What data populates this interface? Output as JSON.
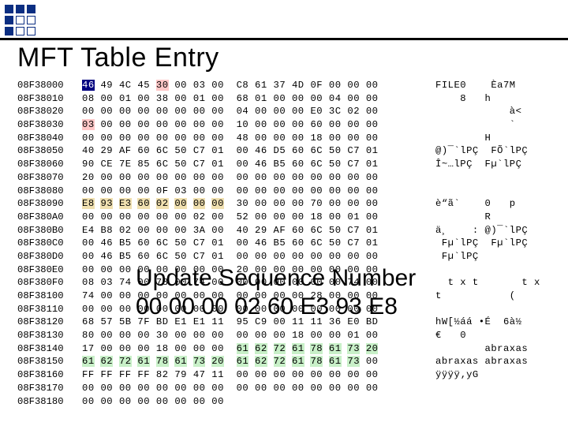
{
  "deco": {
    "squares": [
      {
        "type": "filled"
      },
      {
        "type": "filled"
      },
      {
        "type": "filled"
      },
      {
        "type": "filled"
      },
      {
        "type": "outline"
      },
      {
        "type": "outline"
      },
      {
        "type": "filled"
      },
      {
        "type": "outline"
      },
      {
        "type": "outline"
      }
    ],
    "accent_color": "#0b2e82"
  },
  "title": "MFT Table Entry",
  "overlay": {
    "line1": "Update Sequence Number",
    "line2": "00 00 00 02 60 E3 93 E8"
  },
  "hex": {
    "font": "Courier New",
    "fontsize_pt": 9,
    "rows": [
      {
        "addr": "08F38000",
        "g1": [
          "46",
          "49",
          "4C",
          "45",
          "30",
          "00",
          "03",
          "00"
        ],
        "g2": [
          "C8",
          "61",
          "37",
          "4D",
          "0F",
          "00",
          "00",
          "00"
        ],
        "ascii": "FILE0    Èa7M    ",
        "hl": {
          "0": "inv",
          "4": "redbg"
        }
      },
      {
        "addr": "08F38010",
        "g1": [
          "08",
          "00",
          "01",
          "00",
          "38",
          "00",
          "01",
          "00"
        ],
        "g2": [
          "68",
          "01",
          "00",
          "00",
          "00",
          "04",
          "00",
          "00"
        ],
        "ascii": "    8   h        "
      },
      {
        "addr": "08F38020",
        "g1": [
          "00",
          "00",
          "00",
          "00",
          "00",
          "00",
          "00",
          "00"
        ],
        "g2": [
          "04",
          "00",
          "00",
          "00",
          "E0",
          "3C",
          "02",
          "00"
        ],
        "ascii": "            à<   "
      },
      {
        "addr": "08F38030",
        "g1": [
          "03",
          "00",
          "00",
          "00",
          "00",
          "00",
          "00",
          "00"
        ],
        "g2": [
          "10",
          "00",
          "00",
          "00",
          "60",
          "00",
          "00",
          "00"
        ],
        "ascii": "            `    ",
        "hl": {
          "0": "redbg"
        }
      },
      {
        "addr": "08F38040",
        "g1": [
          "00",
          "00",
          "00",
          "00",
          "00",
          "00",
          "00",
          "00"
        ],
        "g2": [
          "48",
          "00",
          "00",
          "00",
          "18",
          "00",
          "00",
          "00"
        ],
        "ascii": "        H        "
      },
      {
        "addr": "08F38050",
        "g1": [
          "40",
          "29",
          "AF",
          "60",
          "6C",
          "50",
          "C7",
          "01"
        ],
        "g2": [
          "00",
          "46",
          "D5",
          "60",
          "6C",
          "50",
          "C7",
          "01"
        ],
        "ascii": "@)¯`lPÇ  FÕ`lPÇ "
      },
      {
        "addr": "08F38060",
        "g1": [
          "90",
          "CE",
          "7E",
          "85",
          "6C",
          "50",
          "C7",
          "01"
        ],
        "g2": [
          "00",
          "46",
          "B5",
          "60",
          "6C",
          "50",
          "C7",
          "01"
        ],
        "ascii": "Î~…lPÇ  Fµ`lPÇ  "
      },
      {
        "addr": "08F38070",
        "g1": [
          "20",
          "00",
          "00",
          "00",
          "00",
          "00",
          "00",
          "00"
        ],
        "g2": [
          "00",
          "00",
          "00",
          "00",
          "00",
          "00",
          "00",
          "00"
        ],
        "ascii": "                 "
      },
      {
        "addr": "08F38080",
        "g1": [
          "00",
          "00",
          "00",
          "00",
          "0F",
          "03",
          "00",
          "00"
        ],
        "g2": [
          "00",
          "00",
          "00",
          "00",
          "00",
          "00",
          "00",
          "00"
        ],
        "ascii": "                 "
      },
      {
        "addr": "08F38090",
        "g1": [
          "E8",
          "93",
          "E3",
          "60",
          "02",
          "00",
          "00",
          "00"
        ],
        "g2": [
          "30",
          "00",
          "00",
          "00",
          "70",
          "00",
          "00",
          "00"
        ],
        "ascii": "è“ã`    0   p    ",
        "hl": {
          "0": "brownbg",
          "1": "brownbg",
          "2": "brownbg",
          "3": "brownbg",
          "4": "brownbg",
          "5": "brownbg",
          "6": "brownbg",
          "7": "brownbg"
        }
      },
      {
        "addr": "08F380A0",
        "g1": [
          "00",
          "00",
          "00",
          "00",
          "00",
          "00",
          "02",
          "00"
        ],
        "g2": [
          "52",
          "00",
          "00",
          "00",
          "18",
          "00",
          "01",
          "00"
        ],
        "ascii": "        R        "
      },
      {
        "addr": "08F380B0",
        "g1": [
          "E4",
          "B8",
          "02",
          "00",
          "00",
          "00",
          "3A",
          "00"
        ],
        "g2": [
          "40",
          "29",
          "AF",
          "60",
          "6C",
          "50",
          "C7",
          "01"
        ],
        "ascii": "ä¸    : @)¯`lPÇ "
      },
      {
        "addr": "08F380C0",
        "g1": [
          "00",
          "46",
          "B5",
          "60",
          "6C",
          "50",
          "C7",
          "01"
        ],
        "g2": [
          "00",
          "46",
          "B5",
          "60",
          "6C",
          "50",
          "C7",
          "01"
        ],
        "ascii": " Fµ`lPÇ  Fµ`lPÇ "
      },
      {
        "addr": "08F380D0",
        "g1": [
          "00",
          "46",
          "B5",
          "60",
          "6C",
          "50",
          "C7",
          "01"
        ],
        "g2": [
          "00",
          "00",
          "00",
          "00",
          "00",
          "00",
          "00",
          "00"
        ],
        "ascii": " Fµ`lPÇ          "
      },
      {
        "addr": "08F380E0",
        "g1": [
          "00",
          "00",
          "00",
          "00",
          "00",
          "00",
          "00",
          "00"
        ],
        "g2": [
          "20",
          "00",
          "00",
          "00",
          "00",
          "00",
          "00",
          "00"
        ],
        "ascii": "                 "
      },
      {
        "addr": "08F380F0",
        "g1": [
          "08",
          "03",
          "74",
          "00",
          "78",
          "00",
          "74",
          "00"
        ],
        "g2": [
          "00",
          "00",
          "00",
          "00",
          "00",
          "00",
          "74",
          "00"
        ],
        "ascii": "  t x t       t x"
      },
      {
        "addr": "08F38100",
        "g1": [
          "74",
          "00",
          "00",
          "00",
          "00",
          "00",
          "00",
          "00"
        ],
        "g2": [
          "00",
          "00",
          "00",
          "00",
          "28",
          "00",
          "00",
          "00"
        ],
        "ascii": "t           (    "
      },
      {
        "addr": "08F38110",
        "g1": [
          "00",
          "00",
          "00",
          "00",
          "00",
          "00",
          "00",
          "00"
        ],
        "g2": [
          "00",
          "00",
          "00",
          "00",
          "00",
          "00",
          "00",
          "00"
        ],
        "ascii": "                 "
      },
      {
        "addr": "08F38120",
        "g1": [
          "68",
          "57",
          "5B",
          "7F",
          "BD",
          "E1",
          "E1",
          "11"
        ],
        "g2": [
          "95",
          "C9",
          "00",
          "11",
          "11",
          "36",
          "E0",
          "BD"
        ],
        "ascii": "hW[½áá •É  6à½  "
      },
      {
        "addr": "08F38130",
        "g1": [
          "80",
          "00",
          "00",
          "00",
          "30",
          "00",
          "00",
          "00"
        ],
        "g2": [
          "00",
          "00",
          "00",
          "18",
          "00",
          "00",
          "01",
          "00"
        ],
        "ascii": "€   0           "
      },
      {
        "addr": "08F38140",
        "g1": [
          "17",
          "00",
          "00",
          "00",
          "18",
          "00",
          "00",
          "00"
        ],
        "g2": [
          "61",
          "62",
          "72",
          "61",
          "78",
          "61",
          "73",
          "20"
        ],
        "ascii": "        abraxas ",
        "hl": {
          "8": "greenbg",
          "9": "greenbg",
          "10": "greenbg",
          "11": "greenbg",
          "12": "greenbg",
          "13": "greenbg",
          "14": "greenbg",
          "15": "greenbg"
        }
      },
      {
        "addr": "08F38150",
        "g1": [
          "61",
          "62",
          "72",
          "61",
          "78",
          "61",
          "73",
          "20"
        ],
        "g2": [
          "61",
          "62",
          "72",
          "61",
          "78",
          "61",
          "73",
          "00"
        ],
        "ascii": "abraxas abraxas ",
        "hl": {
          "0": "greenbg",
          "1": "greenbg",
          "2": "greenbg",
          "3": "greenbg",
          "4": "greenbg",
          "5": "greenbg",
          "6": "greenbg",
          "7": "greenbg",
          "8": "greenbg",
          "9": "greenbg",
          "10": "greenbg",
          "11": "greenbg",
          "12": "greenbg",
          "13": "greenbg",
          "14": "greenbg"
        }
      },
      {
        "addr": "08F38160",
        "g1": [
          "FF",
          "FF",
          "FF",
          "FF",
          "82",
          "79",
          "47",
          "11"
        ],
        "g2": [
          "00",
          "00",
          "00",
          "00",
          "00",
          "00",
          "00",
          "00"
        ],
        "ascii": "ÿÿÿÿ‚yG          "
      },
      {
        "addr": "08F38170",
        "g1": [
          "00",
          "00",
          "00",
          "00",
          "00",
          "00",
          "00",
          "00"
        ],
        "g2": [
          "00",
          "00",
          "00",
          "00",
          "00",
          "00",
          "00",
          "00"
        ],
        "ascii": "                 "
      },
      {
        "addr": "08F38180",
        "g1": [
          "00",
          "00",
          "00",
          "00",
          "00",
          "00",
          "00",
          "00"
        ],
        "g2": [
          "",
          "",
          "",
          "",
          "",
          "",
          "",
          ""
        ],
        "ascii": ""
      }
    ]
  }
}
